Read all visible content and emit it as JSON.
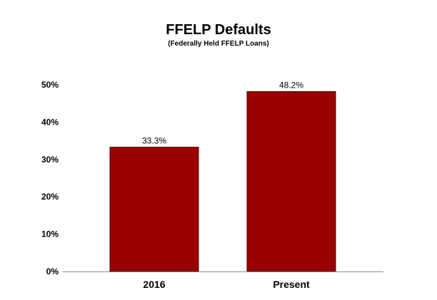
{
  "chart_data": {
    "type": "bar",
    "title": "FFELP Defaults",
    "subtitle": "(Federally Held FFELP Loans)",
    "categories": [
      "2016",
      "Present"
    ],
    "values": [
      33.3,
      48.2
    ],
    "data_labels": [
      "33.3%",
      "48.2%"
    ],
    "ytick_values": [
      0,
      10,
      20,
      30,
      40,
      50
    ],
    "ytick_labels": [
      "0%",
      "10%",
      "20%",
      "30%",
      "40%",
      "50%"
    ],
    "ylim": [
      0,
      50
    ],
    "xlabel": "",
    "ylabel": "",
    "grid": false,
    "legend": "none",
    "bar_color": "#990000",
    "bar_edge_color": "#5a0000"
  }
}
